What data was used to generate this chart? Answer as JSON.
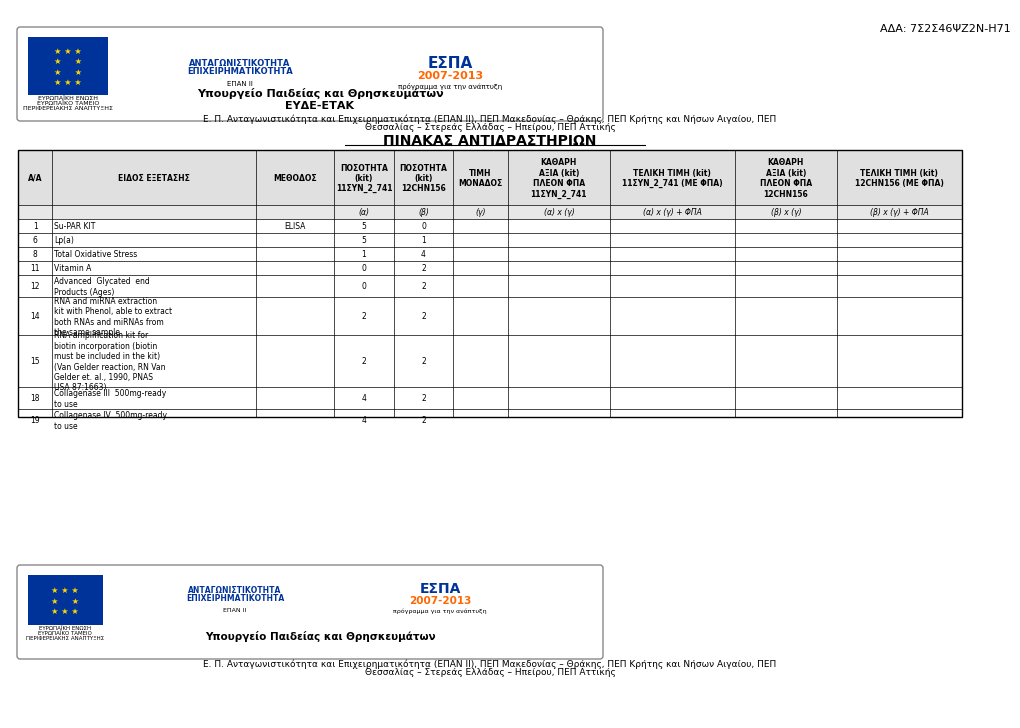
{
  "title_top": "ΑΔΑ: 7Σ2Σ46ΨΖ2Ν-Η71",
  "main_title": "ΠΙΝΑΚΑΣ ΑΝΤΙΔΡΑΣΤΗΡΙΩΝ",
  "header_line1": "Ε. Π. Ανταγωνιστικότητα και Επιχειρηματικότητα (ΕΠΑΝ ΙΙ), ΠΕΠ Μακεδονίας – Θράκης, ΠΕΠ Κρήτης και Νήσων Αιγαίου, ΠΕΠ",
  "header_line2": "Θεσσαλίας – Στερεάς Ελλάδας – Ηπείρου, ΠΕΠ Αττικής",
  "footer_line1": "Ε. Π. Ανταγωνιστικότητα και Επιχειρηματικότητα (ΕΠΑΝ ΙΙ), ΠΕΠ Μακεδονίας – Θράκης, ΠΕΠ Κρήτης και Νήσων Αιγαίου, ΠΕΠ",
  "footer_line2": "Θεσσαλίας – Στερεάς Ελλάδας – Ηπείρου, ΠΕΠ Αττικής",
  "ministry_top": "Υπουργείο Παιδείας και Θρησκευμάτων\nΕΥΔΕ-ΕTΑΚ",
  "ministry_bottom": "Υπουργείο Παιδείας και Θρησκευμάτων",
  "col_headers": [
    "Α/Α",
    "ΕΙΔΟΣ ΕΞΕΤΑΣΗΣ",
    "ΜΕΘΟΔΟΣ",
    "ΠΟΣΟΤΗΤΑ\n(kit)\n11ΣΥΝ_2_741",
    "ΠΟΣΟΤΗΤΑ\n(kit)\n12CHN156",
    "ΤΙΜΗ\nΜΟΝΑΔΟΣ",
    "ΚΑΘΑΡΗ\nΑΞΙΑ (kit)\nΠΛΕΟΝ ΦΠΑ\n11ΣΥΝ_2_741",
    "ΤΕΛΙΚΗ ΤΙΜΗ (kit)\n11ΣΥΝ_2_741 (ΜΕ ΦΠΑ)",
    "ΚΑΘΑΡΗ\nΑΞΙΑ (kit)\nΠΛΕΟΝ ΦΠΑ\n12CHN156",
    "ΤΕΛΙΚΗ ΤΙΜΗ (kit)\n12CHN156 (ΜΕ ΦΠΑ)"
  ],
  "subheader": [
    "",
    "",
    "",
    "(α)",
    "(β)",
    "(γ)",
    "(α) x (γ)",
    "(α) x (γ) + ΦΠΑ",
    "(β) x (γ)",
    "(β) x (γ) + ΦΠΑ"
  ],
  "rows": [
    [
      "1",
      "Su-PAR KIT",
      "ELISA",
      "5",
      "0",
      "",
      "",
      "",
      "",
      ""
    ],
    [
      "6",
      "Lp(a)",
      "",
      "5",
      "1",
      "",
      "",
      "",
      "",
      ""
    ],
    [
      "8",
      "Total Oxidative Stress",
      "",
      "1",
      "4",
      "",
      "",
      "",
      "",
      ""
    ],
    [
      "11",
      "Vitamin A",
      "",
      "0",
      "2",
      "",
      "",
      "",
      "",
      ""
    ],
    [
      "12",
      "Advanced  Glycated  end\nProducts (Ages)",
      "",
      "0",
      "2",
      "",
      "",
      "",
      "",
      ""
    ],
    [
      "14",
      "RNA and miRNA extraction\nkit with Phenol, able to extract\nboth RNAs and miRNAs from\nthe same sample",
      "",
      "2",
      "2",
      "",
      "",
      "",
      "",
      ""
    ],
    [
      "15",
      "RNA amplification kit for\nbiotin incorporation (biotin\nmust be included in the kit)\n(Van Gelder reaction, RN Van\nGelder et. al., 1990, PNAS\nUSA 87:1663)",
      "",
      "2",
      "2",
      "",
      "",
      "",
      "",
      ""
    ],
    [
      "18",
      "Collagenase III  500mg-ready\nto use",
      "",
      "4",
      "2",
      "",
      "",
      "",
      "",
      ""
    ],
    [
      "19",
      "Collagenase IV  500mg-ready\nto use",
      "",
      "4",
      "2",
      "",
      "",
      "",
      "",
      ""
    ]
  ],
  "bg_color": "#ffffff",
  "table_header_bg": "#d9d9d9",
  "border_color": "#000000",
  "text_color": "#000000",
  "font_size": 7,
  "header_font_size": 7
}
